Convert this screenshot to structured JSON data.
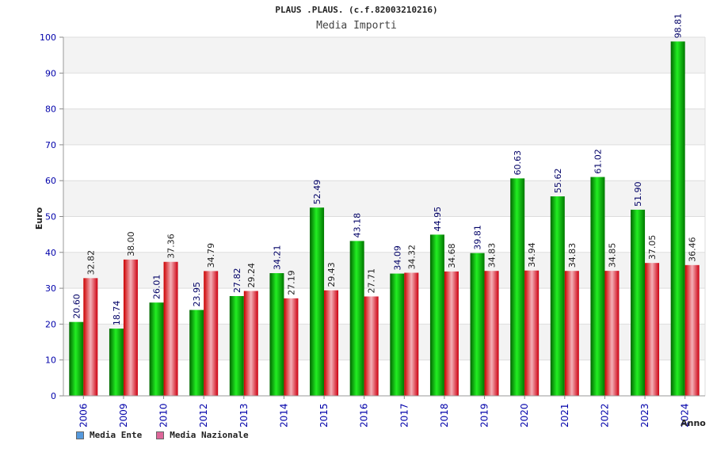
{
  "chart_data": {
    "type": "bar",
    "title": "PLAUS .PLAUS. (c.f.82003210216)",
    "subtitle": "Media Importi",
    "ylabel": "Euro",
    "xlabel": "Anno",
    "ylim": [
      0,
      100
    ],
    "yticks": [
      0,
      10,
      20,
      30,
      40,
      50,
      60,
      70,
      80,
      90,
      100
    ],
    "grid": true,
    "legend_position": "bottom-left",
    "categories": [
      "2006",
      "2009",
      "2010",
      "2012",
      "2013",
      "2014",
      "2015",
      "2016",
      "2017",
      "2018",
      "2019",
      "2020",
      "2021",
      "2022",
      "2023",
      "2024"
    ],
    "series": [
      {
        "name": "Media Ente",
        "color": "#00aa00",
        "values": [
          20.6,
          18.74,
          26.01,
          23.95,
          27.82,
          34.21,
          52.49,
          43.18,
          34.09,
          44.95,
          39.81,
          60.63,
          55.62,
          61.02,
          51.9,
          98.81
        ],
        "labels": [
          "20.60",
          "18.74",
          "26.01",
          "23.95",
          "27.82",
          "34.21",
          "52.49",
          "43.18",
          "34.09",
          "44.95",
          "39.81",
          "60.63",
          "55.62",
          "61.02",
          "51.90",
          "98.81"
        ]
      },
      {
        "name": "Media Nazionale",
        "color": "#dd1133",
        "values": [
          32.82,
          38.0,
          37.36,
          34.79,
          29.24,
          27.19,
          29.43,
          27.71,
          34.32,
          34.68,
          34.83,
          34.94,
          34.83,
          34.85,
          37.05,
          36.46
        ],
        "labels": [
          "32.82",
          "38.00",
          "37.36",
          "34.79",
          "29.24",
          "27.19",
          "29.43",
          "27.71",
          "34.32",
          "34.68",
          "34.83",
          "34.94",
          "34.83",
          "34.85",
          "37.05",
          "36.46"
        ]
      }
    ]
  },
  "legend": {
    "items": [
      {
        "label": "Media Ente",
        "color": "#5599dd"
      },
      {
        "label": "Media Nazionale",
        "color": "#dd6699"
      }
    ]
  }
}
